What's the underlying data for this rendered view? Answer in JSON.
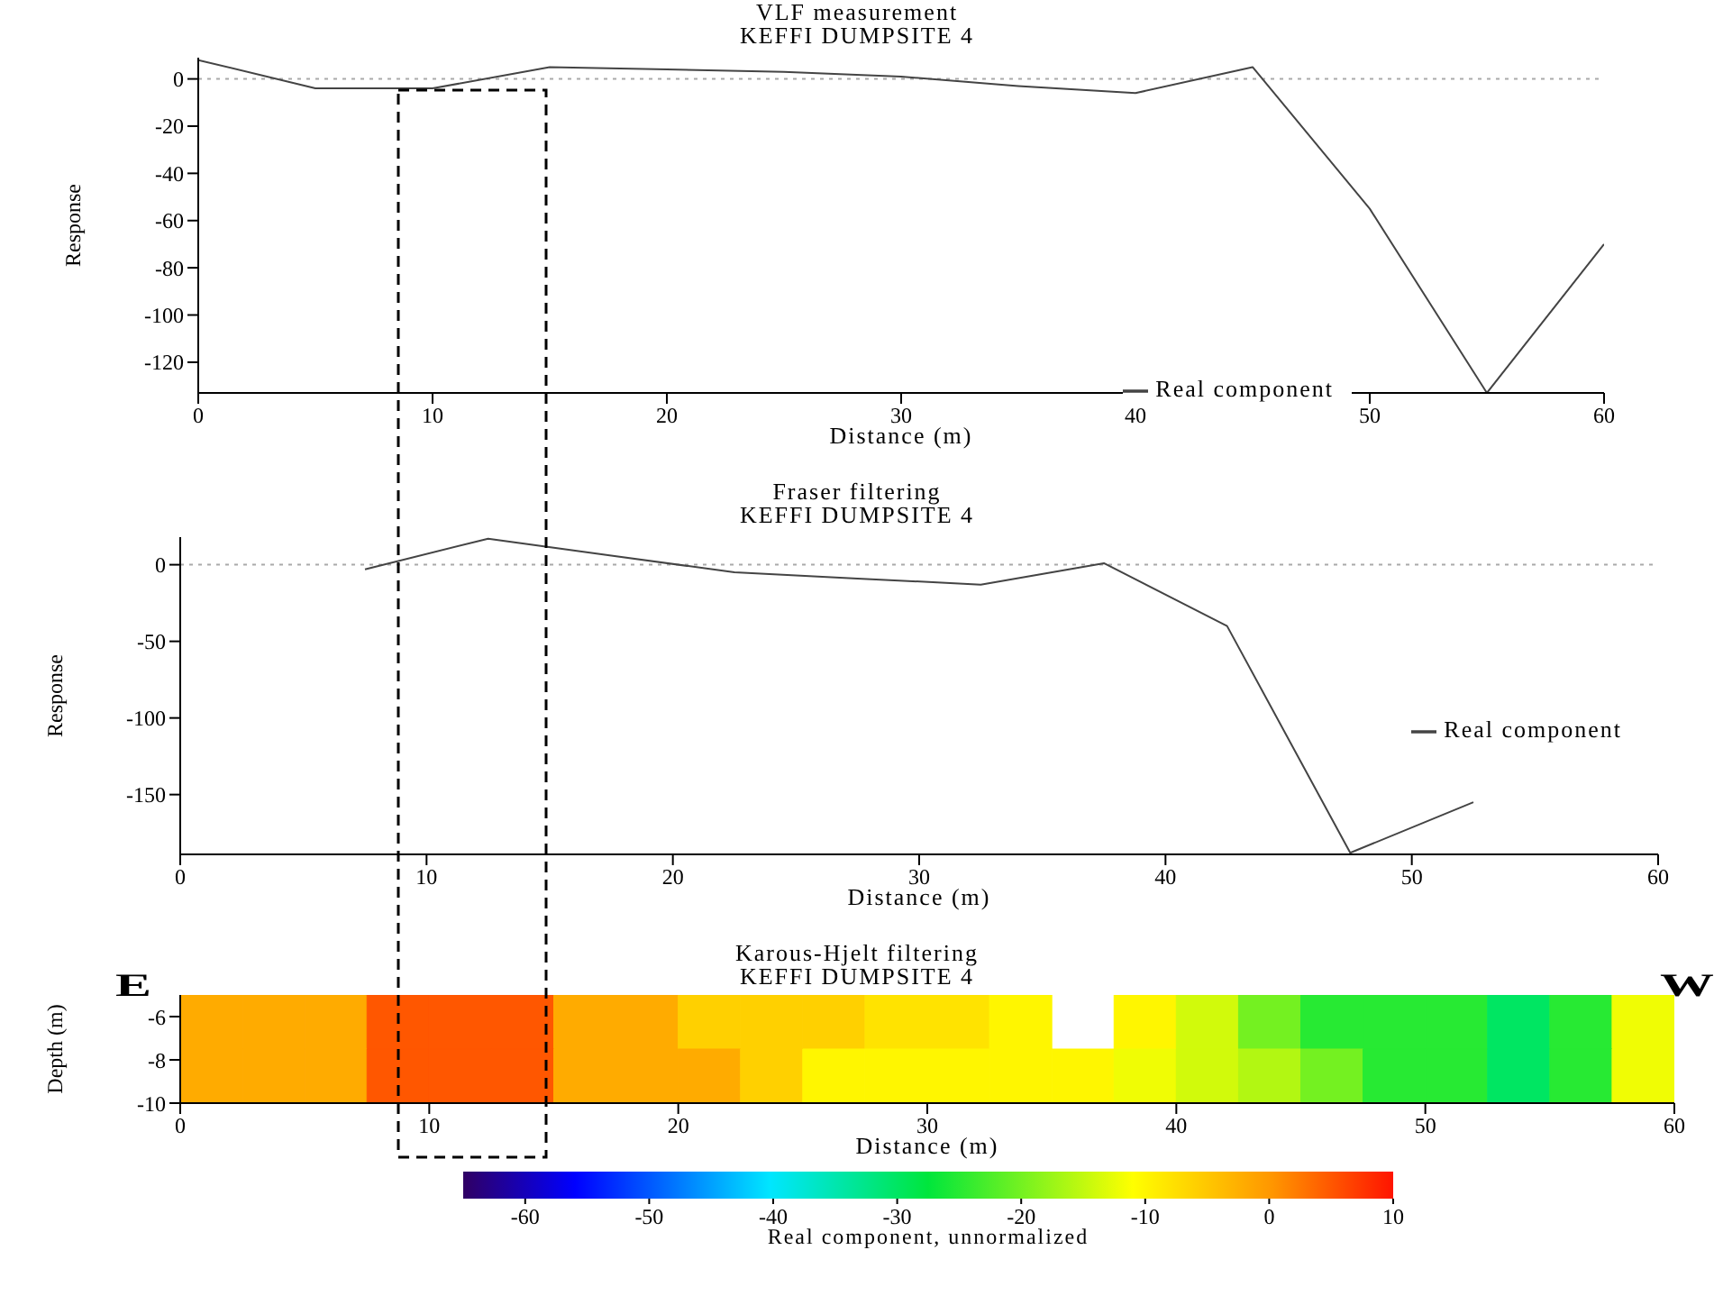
{
  "chart_data": [
    {
      "type": "line",
      "title": "VLF measurement",
      "subtitle": "KEFFI DUMPSITE 4",
      "xlabel": "Distance (m)",
      "ylabel": "Response",
      "x": [
        0,
        5,
        10,
        15,
        20,
        25,
        30,
        35,
        40,
        45,
        50,
        55,
        60
      ],
      "series": [
        {
          "name": "Real component",
          "color": "#444444",
          "values": [
            8,
            -4,
            -4,
            5,
            4,
            3,
            1,
            -3,
            -6,
            5,
            -55,
            -133,
            -70
          ]
        }
      ],
      "xlim": [
        0,
        60
      ],
      "xticks": [
        0,
        10,
        20,
        30,
        40,
        50,
        60
      ],
      "ylim": [
        -133,
        9
      ],
      "yticks": [
        0,
        -20,
        -40,
        -60,
        -80,
        -100,
        -120
      ],
      "ref_lines": [
        {
          "axis": "y",
          "value": 0,
          "color": "#aaaaaa",
          "line_style": "dotted"
        }
      ],
      "legend": "bottom right",
      "grid": false
    },
    {
      "type": "line",
      "title": "Fraser filtering",
      "subtitle": "KEFFI DUMPSITE 4",
      "xlabel": "Distance (m)",
      "ylabel": "Response",
      "x": [
        7.5,
        12.5,
        17.5,
        22.5,
        27.5,
        32.5,
        37.5,
        42.5,
        47.5,
        52.5
      ],
      "series": [
        {
          "name": "Real component",
          "color": "#444444",
          "values": [
            -3,
            17,
            6,
            -5,
            -9,
            -13,
            1,
            -40,
            -188,
            -155
          ]
        }
      ],
      "xlim": [
        0,
        60
      ],
      "xticks": [
        0,
        10,
        20,
        30,
        40,
        50,
        60
      ],
      "ylim": [
        -189,
        18
      ],
      "yticks": [
        0,
        -50,
        -100,
        -150
      ],
      "ref_lines": [
        {
          "axis": "y",
          "value": 0,
          "color": "#aaaaaa",
          "line_style": "dotted"
        }
      ],
      "legend": "right",
      "grid": false
    },
    {
      "type": "heatmap",
      "title": "Karous-Hjelt filtering",
      "subtitle": "KEFFI DUMPSITE 4",
      "xlabel": "Distance (m)",
      "ylabel": "Depth (m)",
      "clabel": "Real component, unnormalized",
      "annotations": [
        "E",
        "W"
      ],
      "x": [
        1.25,
        3.75,
        6.25,
        8.75,
        11.25,
        13.75,
        16.25,
        18.75,
        21.25,
        23.75,
        26.25,
        28.75,
        31.25,
        33.75,
        36.25,
        38.75,
        41.25,
        43.75,
        46.25,
        48.75,
        51.25,
        53.75,
        56.25,
        58.75
      ],
      "y": [
        -6.25,
        -8.75
      ],
      "cells": [
        [
          -2,
          -2,
          -2,
          5,
          5,
          5,
          -2,
          -2,
          -6,
          -6,
          -6,
          -8,
          -8,
          -10,
          null,
          -10,
          -14,
          -20,
          -25,
          -25,
          -25,
          -30,
          -25,
          -12
        ],
        [
          -2,
          -2,
          -2,
          5,
          5,
          5,
          -2,
          -2,
          -2,
          -6,
          -10,
          -10,
          -10,
          -10,
          -10,
          -12,
          -14,
          -16,
          -20,
          -25,
          -25,
          -30,
          -25,
          -12
        ]
      ],
      "xlim": [
        0,
        60
      ],
      "xticks": [
        0,
        10,
        20,
        30,
        40,
        50,
        60
      ],
      "ylim": [
        -10,
        -5
      ],
      "yticks": [
        -6,
        -8,
        -10
      ],
      "clim": [
        -65,
        10
      ],
      "cticks": [
        -60,
        -50,
        -40,
        -30,
        -20,
        -10,
        0,
        10
      ]
    }
  ]
}
